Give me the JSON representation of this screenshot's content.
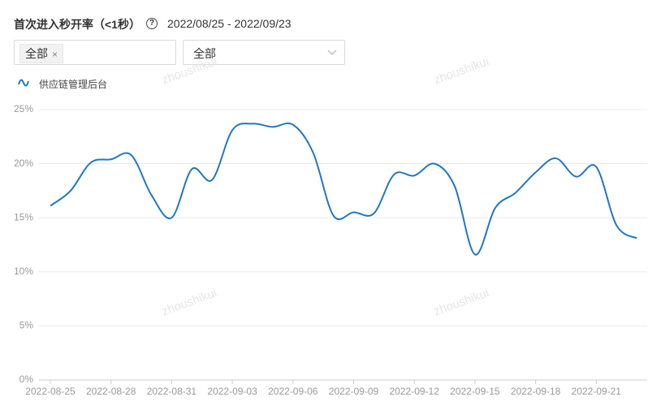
{
  "header": {
    "title": "首次进入秒开率（<1秒）",
    "date_range": "2022/08/25 - 2022/09/23"
  },
  "filters": [
    {
      "value": "全部",
      "removable": true
    },
    {
      "value": "全部"
    }
  ],
  "watermark": "zhoushikui",
  "chart_data": {
    "type": "line",
    "categories": [
      "2022-08-25",
      null,
      null,
      "2022-08-28",
      null,
      null,
      "2022-08-31",
      null,
      null,
      "2022-09-03",
      null,
      null,
      "2022-09-06",
      null,
      null,
      "2022-09-09",
      null,
      null,
      "2022-09-12",
      null,
      null,
      "2022-09-15",
      null,
      null,
      "2022-09-18",
      null,
      null,
      "2022-09-21",
      null,
      null
    ],
    "series": [
      {
        "name": "供应链管理后台",
        "color": "#1f77c4",
        "values": [
          16.1,
          17.5,
          20.1,
          20.4,
          20.8,
          17.1,
          15.0,
          19.5,
          18.5,
          23.1,
          23.7,
          23.4,
          23.6,
          21.0,
          15.2,
          15.5,
          15.4,
          19.0,
          18.9,
          20.0,
          17.9,
          11.6,
          15.9,
          17.3,
          19.2,
          20.5,
          18.8,
          19.7,
          14.3,
          13.1
        ]
      }
    ],
    "ylim": [
      0,
      25
    ],
    "yticks": [
      {
        "value": 0,
        "label": "0%"
      },
      {
        "value": 5,
        "label": "5%"
      },
      {
        "value": 10,
        "label": "10%"
      },
      {
        "value": 15,
        "label": "15%"
      },
      {
        "value": 20,
        "label": "20%"
      },
      {
        "value": 25,
        "label": "25%"
      }
    ],
    "grid": true,
    "smooth": true
  }
}
